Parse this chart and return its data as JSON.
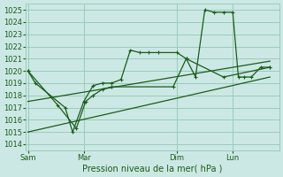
{
  "bg_color": "#cce8e4",
  "grid_color": "#99ccbb",
  "line_color": "#1a5c1a",
  "title": "Pression niveau de la mer( hPa )",
  "ylim": [
    1013.5,
    1025.5
  ],
  "yticks": [
    1014,
    1015,
    1016,
    1017,
    1018,
    1019,
    1020,
    1021,
    1022,
    1023,
    1024,
    1025
  ],
  "xtick_labels": [
    "Sam",
    "Mar",
    "Dim",
    "Lun"
  ],
  "xtick_positions": [
    0,
    3,
    8,
    11
  ],
  "vline_positions": [
    0,
    3,
    8,
    11
  ],
  "xlim": [
    -0.1,
    13.5
  ],
  "series1_x": [
    0,
    0.4,
    2.0,
    2.4,
    3.0,
    3.5,
    4.0,
    4.5,
    5.0,
    5.5,
    6.0,
    6.5,
    7.0,
    8.0,
    8.5,
    9.0,
    9.5,
    10.0,
    10.5,
    11.0,
    11.3,
    11.6,
    12.0,
    12.5,
    13.0
  ],
  "series1_y": [
    1020,
    1019,
    1017,
    1015,
    1017.5,
    1018.8,
    1019.0,
    1019.0,
    1019.3,
    1021.7,
    1021.5,
    1021.5,
    1021.5,
    1021.5,
    1021.0,
    1019.5,
    1025.0,
    1024.8,
    1024.8,
    1024.8,
    1019.5,
    1019.5,
    1019.5,
    1020.3,
    1020.3
  ],
  "series1_markers": true,
  "series2_x": [
    0,
    1.6,
    2.6,
    3.1,
    3.5,
    4.0,
    4.5,
    7.8,
    8.5,
    10.5,
    13.0
  ],
  "series2_y": [
    1020,
    1017.2,
    1015.3,
    1017.5,
    1018.0,
    1018.5,
    1018.7,
    1018.7,
    1021.0,
    1019.5,
    1020.3
  ],
  "series2_markers": true,
  "series3_x": [
    0,
    13.0
  ],
  "series3_y": [
    1017.5,
    1020.8
  ],
  "series3_markers": false,
  "series4_x": [
    0,
    13.0
  ],
  "series4_y": [
    1015.0,
    1019.5
  ],
  "series4_markers": false,
  "figsize": [
    3.2,
    2.0
  ],
  "dpi": 100
}
